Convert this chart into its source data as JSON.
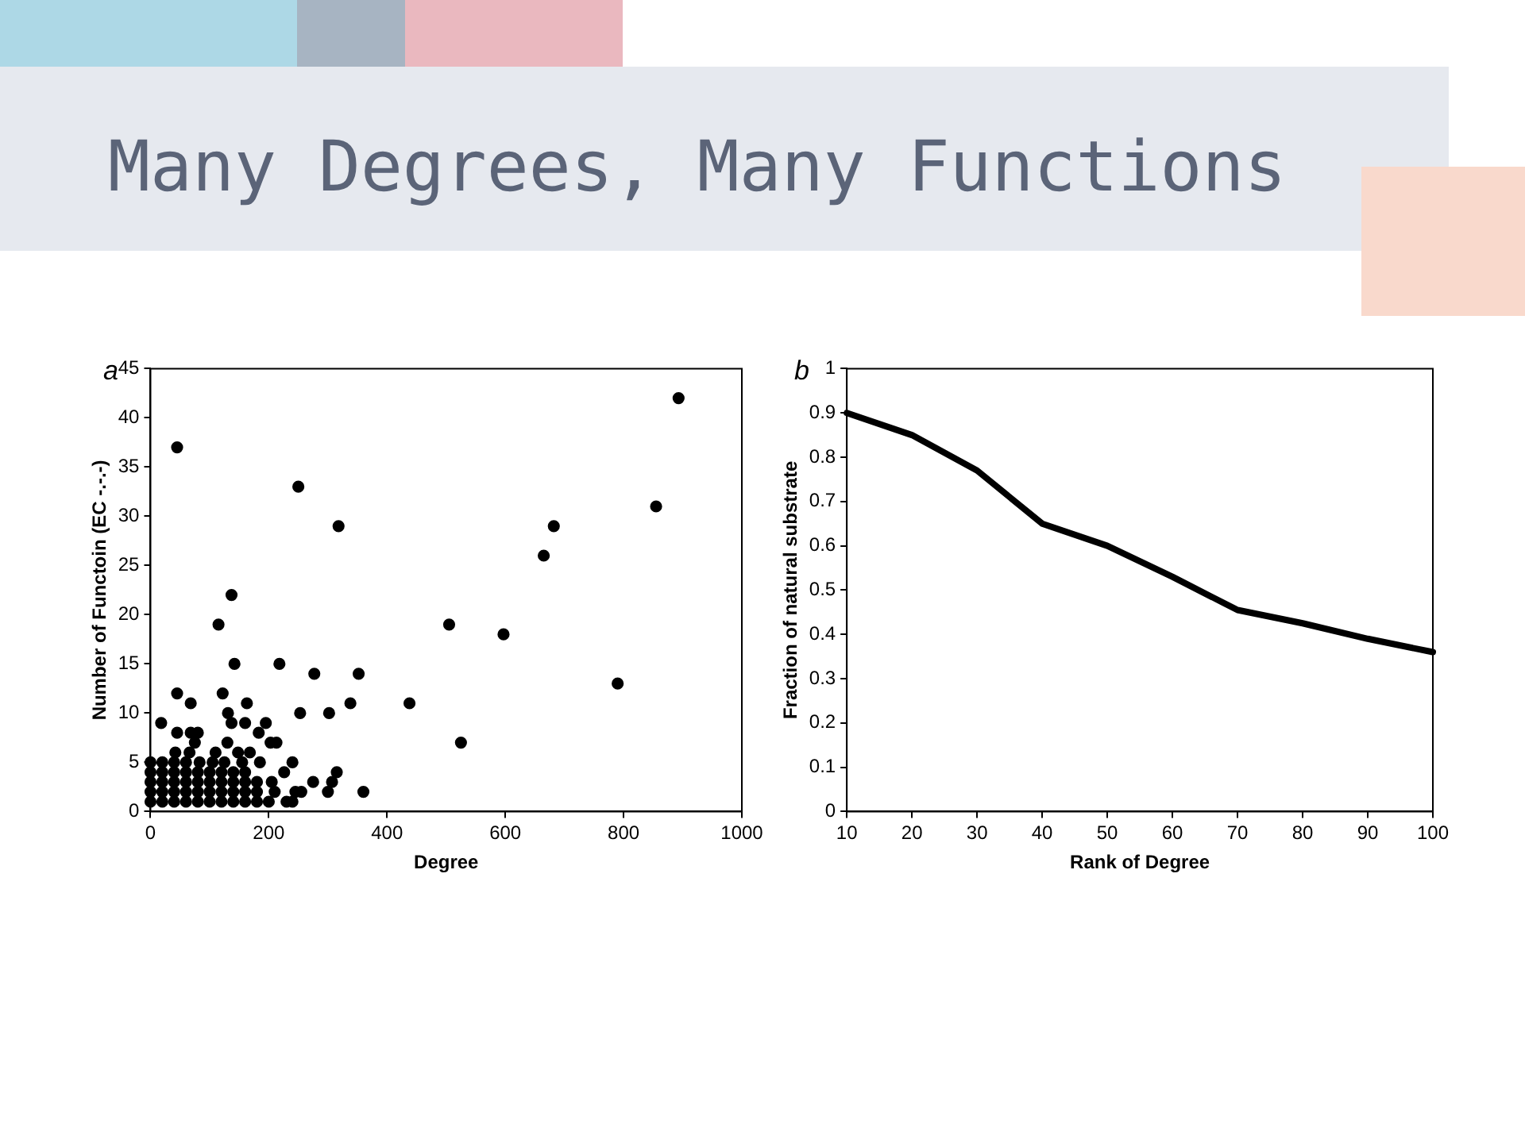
{
  "chart_data": [
    {
      "type": "scatter",
      "title": "Many Degrees, Many Functions",
      "annotations": [
        "a"
      ],
      "xlabel": "Degree",
      "ylabel": "Number of Functoin (EC -.-.-)",
      "xlim": [
        0,
        1000
      ],
      "ylim": [
        0,
        45
      ],
      "xticks": [
        0,
        200,
        400,
        600,
        800,
        1000
      ],
      "yticks": [
        0,
        5,
        10,
        15,
        20,
        25,
        30,
        35,
        40,
        45
      ],
      "grid": false,
      "legend": false,
      "marker": "circle",
      "series": [
        {
          "color": "#000000",
          "x": [
            45,
            250,
            318,
            137,
            115,
            142,
            218,
            277,
            352,
            45,
            122,
            68,
            163,
            338,
            438,
            131,
            253,
            302,
            18,
            137,
            160,
            195,
            45,
            68,
            80,
            183,
            75,
            130,
            203,
            213,
            525,
            505,
            597,
            665,
            682,
            790,
            855,
            893,
            42,
            66,
            110,
            148,
            168,
            83,
            105,
            155,
            185,
            240,
            226,
            315,
            307,
            275,
            205,
            360,
            300,
            255,
            245,
            230,
            240,
            210,
            200,
            0,
            20,
            40,
            60,
            80,
            100,
            120,
            140,
            160,
            180,
            0,
            20,
            40,
            60,
            80,
            100,
            120,
            140,
            160,
            180,
            0,
            20,
            40,
            60,
            80,
            100,
            120,
            140,
            160,
            180,
            0,
            20,
            40,
            60,
            80,
            100,
            120,
            140,
            160,
            0,
            20,
            40,
            60,
            125
          ],
          "values": [
            37,
            33,
            29,
            22,
            19,
            15,
            15,
            14,
            14,
            12,
            12,
            11,
            11,
            11,
            11,
            10,
            10,
            10,
            9,
            9,
            9,
            9,
            8,
            8,
            8,
            8,
            7,
            7,
            7,
            7,
            7,
            19,
            18,
            26,
            29,
            13,
            31,
            42,
            6,
            6,
            6,
            6,
            6,
            5,
            5,
            5,
            5,
            5,
            4,
            4,
            3,
            3,
            3,
            2,
            2,
            2,
            2,
            1,
            1,
            2,
            1,
            1,
            1,
            1,
            1,
            1,
            1,
            1,
            1,
            1,
            1,
            2,
            2,
            2,
            2,
            2,
            2,
            2,
            2,
            2,
            2,
            3,
            3,
            3,
            3,
            3,
            3,
            3,
            3,
            3,
            3,
            4,
            4,
            4,
            4,
            4,
            4,
            4,
            4,
            4,
            5,
            5,
            5,
            5,
            5
          ]
        }
      ]
    },
    {
      "type": "line",
      "annotations": [
        "b"
      ],
      "xlabel": "Rank of Degree",
      "ylabel": "Fraction of natural substrate",
      "xlim": [
        10,
        100
      ],
      "ylim": [
        0,
        1
      ],
      "xticks": [
        10,
        20,
        30,
        40,
        50,
        60,
        70,
        80,
        90,
        100
      ],
      "yticks": [
        0,
        0.1,
        0.2,
        0.3,
        0.4,
        0.5,
        0.6,
        0.7,
        0.8,
        0.9,
        1
      ],
      "grid": false,
      "legend": false,
      "marker": "none",
      "line_style": "solid",
      "series": [
        {
          "color": "#000000",
          "x": [
            10,
            20,
            30,
            40,
            50,
            60,
            70,
            80,
            90,
            100
          ],
          "values": [
            0.9,
            0.85,
            0.77,
            0.65,
            0.6,
            0.53,
            0.455,
            0.425,
            0.39,
            0.36
          ]
        }
      ]
    }
  ]
}
